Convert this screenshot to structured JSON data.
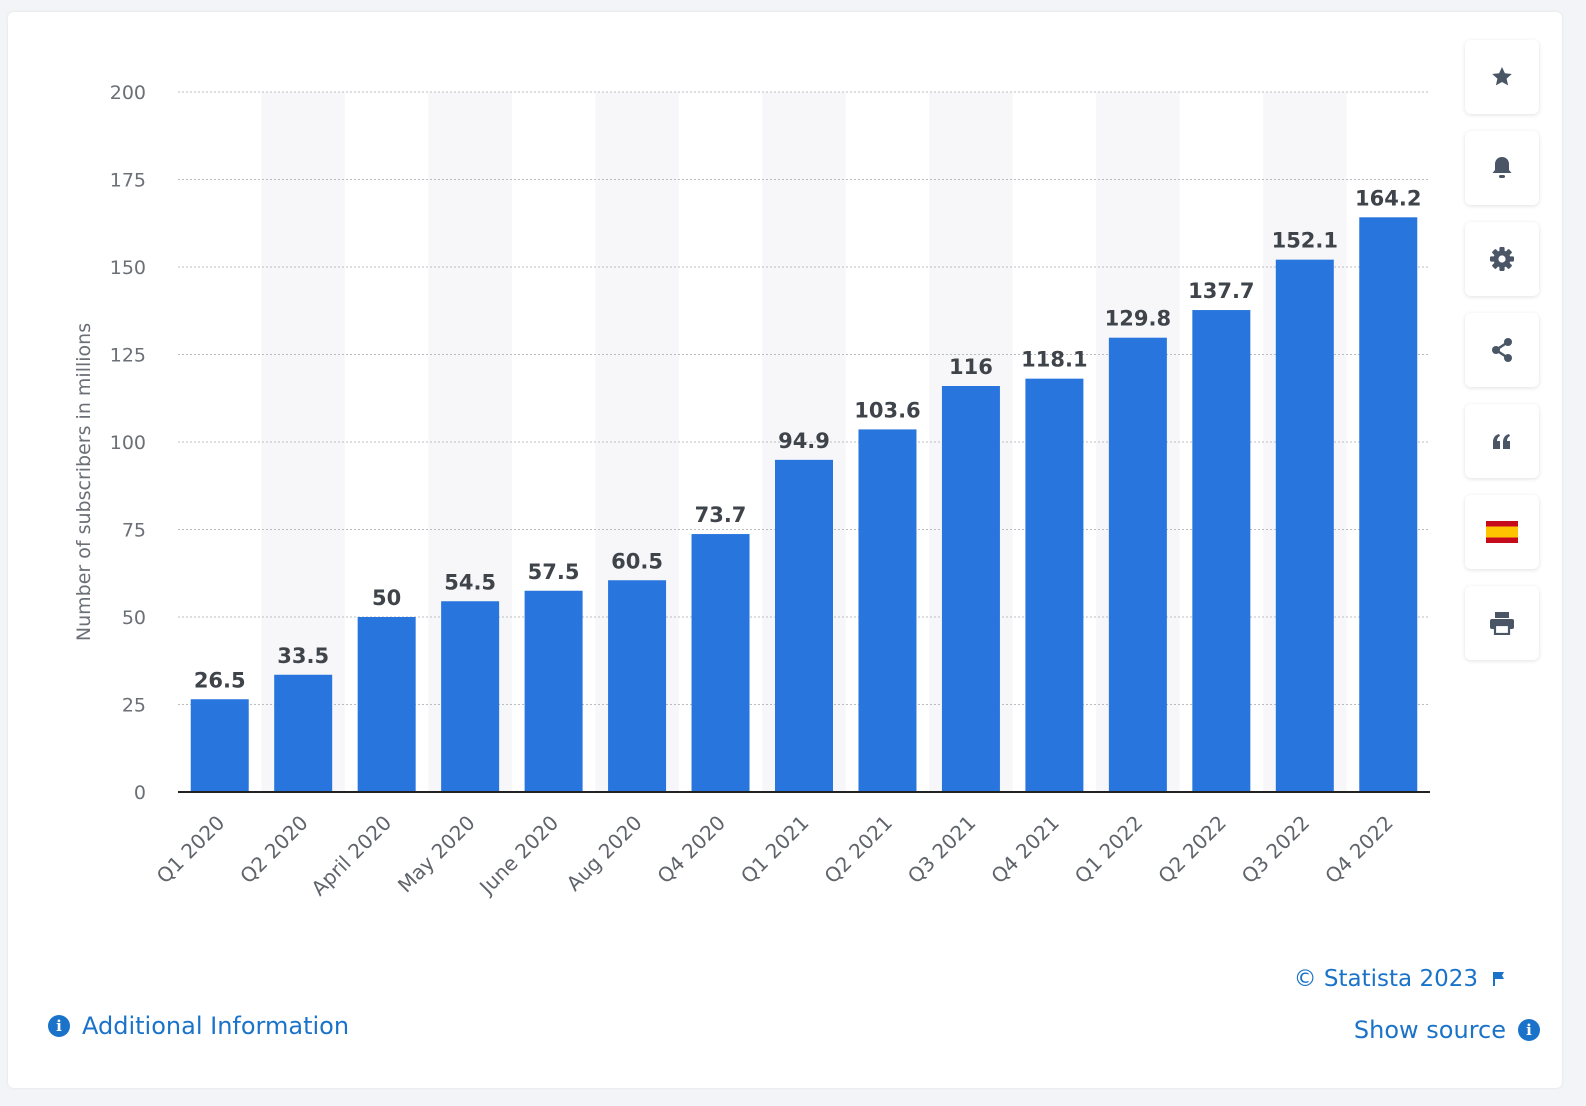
{
  "chart_data": {
    "type": "bar",
    "categories": [
      "Q1 2020",
      "Q2 2020",
      "April 2020",
      "May 2020",
      "June 2020",
      "Aug 2020",
      "Q4 2020",
      "Q1 2021",
      "Q2 2021",
      "Q3 2021",
      "Q4 2021",
      "Q1 2022",
      "Q2 2022",
      "Q3 2022",
      "Q4 2022"
    ],
    "values": [
      26.5,
      33.5,
      50,
      54.5,
      57.5,
      60.5,
      73.7,
      94.9,
      103.6,
      116,
      118.1,
      129.8,
      137.7,
      152.1,
      164.2
    ],
    "value_labels": [
      "26.5",
      "33.5",
      "50",
      "54.5",
      "57.5",
      "60.5",
      "73.7",
      "94.9",
      "103.6",
      "116",
      "118.1",
      "129.8",
      "137.7",
      "152.1",
      "164.2"
    ],
    "yticks": [
      "0",
      "25",
      "50",
      "75",
      "100",
      "125",
      "150",
      "175",
      "200"
    ],
    "ylim": [
      0,
      200
    ],
    "ylabel": "Number of subscribers in millions",
    "xlabel": "",
    "title": "",
    "grid": true,
    "bar_color": "#2875de"
  },
  "sidebar": {
    "buttons": [
      {
        "name": "favorite-button",
        "icon": "star-icon"
      },
      {
        "name": "notification-button",
        "icon": "bell-icon"
      },
      {
        "name": "settings-button",
        "icon": "gear-icon"
      },
      {
        "name": "share-button",
        "icon": "share-icon"
      },
      {
        "name": "cite-button",
        "icon": "quote-icon"
      },
      {
        "name": "language-button",
        "icon": "spain-flag-icon"
      },
      {
        "name": "print-button",
        "icon": "printer-icon"
      }
    ]
  },
  "footer": {
    "credit": "© Statista 2023",
    "show_source": "Show source",
    "additional_info": "Additional Information",
    "link_color": "#1a73c9"
  }
}
